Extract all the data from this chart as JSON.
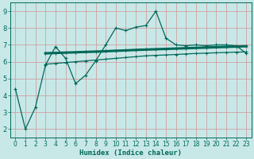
{
  "xlabel": "Humidex (Indice chaleur)",
  "bg_color": "#c8e8e8",
  "grid_color": "#d0a0a0",
  "line_color": "#006858",
  "xlim": [
    -0.5,
    23.5
  ],
  "ylim": [
    1.5,
    9.5
  ],
  "x_ticks": [
    0,
    1,
    2,
    3,
    4,
    5,
    6,
    7,
    8,
    9,
    10,
    11,
    12,
    13,
    14,
    15,
    16,
    17,
    18,
    19,
    20,
    21,
    22,
    23
  ],
  "y_ticks": [
    2,
    3,
    4,
    5,
    6,
    7,
    8,
    9
  ],
  "main_x": [
    0,
    1,
    2,
    3,
    4,
    5,
    6,
    7,
    8,
    9,
    10,
    11,
    12,
    13,
    14,
    15,
    16,
    17,
    18,
    19,
    20,
    21,
    22,
    23
  ],
  "main_y": [
    4.4,
    2.0,
    3.3,
    5.8,
    6.9,
    6.2,
    4.7,
    5.2,
    6.05,
    7.0,
    8.0,
    7.85,
    8.05,
    8.15,
    9.0,
    7.4,
    7.0,
    6.95,
    7.0,
    6.95,
    7.0,
    7.0,
    6.95,
    6.5
  ],
  "trend1_x": [
    3,
    4,
    5,
    6,
    7,
    8,
    9,
    10,
    11,
    12,
    13,
    14,
    15,
    16,
    17,
    18,
    19,
    20,
    21,
    22,
    23
  ],
  "trend1_y": [
    6.5,
    6.52,
    6.54,
    6.56,
    6.58,
    6.6,
    6.62,
    6.65,
    6.67,
    6.7,
    6.72,
    6.74,
    6.76,
    6.78,
    6.8,
    6.82,
    6.84,
    6.86,
    6.88,
    6.9,
    6.92
  ],
  "trend2_x": [
    3,
    4,
    5,
    6,
    7,
    8,
    9,
    10,
    11,
    12,
    13,
    14,
    15,
    16,
    17,
    18,
    19,
    20,
    21,
    22,
    23
  ],
  "trend2_y": [
    5.85,
    5.9,
    5.95,
    6.0,
    6.05,
    6.1,
    6.15,
    6.2,
    6.25,
    6.3,
    6.35,
    6.38,
    6.4,
    6.43,
    6.46,
    6.49,
    6.51,
    6.53,
    6.55,
    6.57,
    6.58
  ]
}
